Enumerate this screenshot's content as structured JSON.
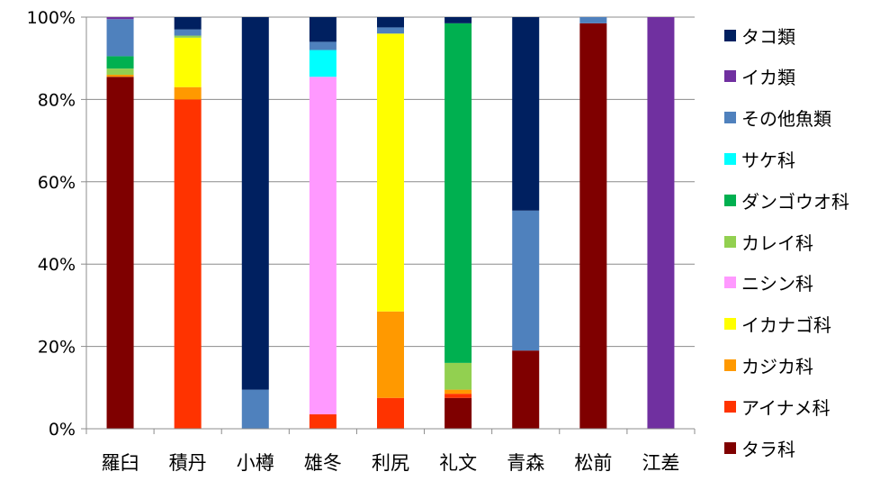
{
  "chart_data": {
    "type": "bar",
    "stacked": true,
    "normalized": true,
    "categories": [
      "羅臼",
      "積丹",
      "小樽",
      "雄冬",
      "利尻",
      "礼文",
      "青森",
      "松前",
      "江差"
    ],
    "ylim": [
      0,
      100
    ],
    "yticks": [
      "0%",
      "20%",
      "40%",
      "60%",
      "80%",
      "100%"
    ],
    "grid": "horizontal",
    "legend_position": "right",
    "series": [
      {
        "name": "タラ科",
        "color": "#7f0000",
        "values": [
          85.5,
          0,
          0,
          0,
          0,
          7.5,
          19,
          98.5,
          0
        ]
      },
      {
        "name": "アイナメ科",
        "color": "#ff3300",
        "values": [
          0,
          80,
          0,
          3.5,
          7.5,
          1,
          0,
          0,
          0
        ]
      },
      {
        "name": "カジカ科",
        "color": "#ff9900",
        "values": [
          0.5,
          3,
          0,
          0,
          21,
          1,
          0,
          0,
          0
        ]
      },
      {
        "name": "イカナゴ科",
        "color": "#ffff00",
        "values": [
          0,
          12,
          0,
          0,
          67.5,
          0,
          0,
          0,
          0
        ]
      },
      {
        "name": "ニシン科",
        "color": "#ff99ff",
        "values": [
          0,
          0,
          0,
          82,
          0,
          0,
          0,
          0,
          0
        ]
      },
      {
        "name": "カレイ科",
        "color": "#92d050",
        "values": [
          1.5,
          0.5,
          0,
          0,
          0,
          6.5,
          0,
          0,
          0
        ]
      },
      {
        "name": "ダンゴウオ科",
        "color": "#00b050",
        "values": [
          3,
          0,
          0,
          0,
          0,
          82.5,
          0,
          0,
          0
        ]
      },
      {
        "name": "サケ科",
        "color": "#00ffff",
        "values": [
          0,
          0,
          0,
          6.5,
          0,
          0,
          0,
          0,
          0
        ]
      },
      {
        "name": "その他魚類",
        "color": "#4f81bd",
        "values": [
          9,
          1.5,
          9.5,
          2,
          1.5,
          0,
          34,
          1.5,
          0
        ]
      },
      {
        "name": "イカ類",
        "color": "#7030a0",
        "values": [
          0.5,
          0,
          0,
          0,
          0,
          0,
          0,
          0,
          100
        ]
      },
      {
        "name": "タコ類",
        "color": "#002060",
        "values": [
          0,
          3,
          90.5,
          6,
          2.5,
          1.5,
          47,
          0,
          0
        ]
      }
    ]
  }
}
